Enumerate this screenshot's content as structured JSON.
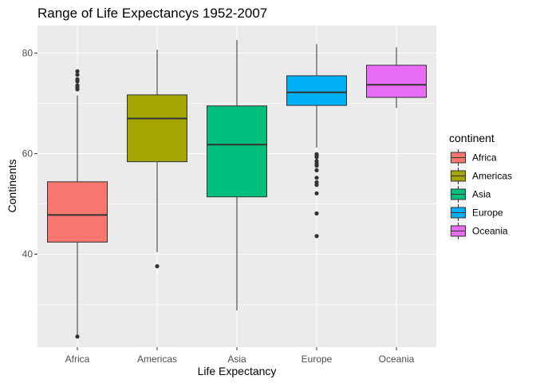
{
  "chart_data": {
    "type": "boxplot",
    "title": "Range of Life Expectancys 1952-2007",
    "xlabel": "Life Expectancy",
    "ylabel": "Continents",
    "ylim": [
      21.5,
      85.5
    ],
    "y_ticks": [
      40,
      60,
      80
    ],
    "grid": true,
    "legend": {
      "title": "continent",
      "placement": "right",
      "entries": [
        "Africa",
        "Americas",
        "Asia",
        "Europe",
        "Oceania"
      ]
    },
    "categories": [
      "Africa",
      "Americas",
      "Asia",
      "Europe",
      "Oceania"
    ],
    "colors": [
      "#F8766D",
      "#A3A500",
      "#00BF7D",
      "#00B0F6",
      "#E76BF3"
    ],
    "series": [
      {
        "category": "Africa",
        "q1": 42.4,
        "median": 47.8,
        "q3": 54.4,
        "whisker_low": 23.6,
        "whisker_high": 71.6,
        "outliers": [
          23.6,
          72.8,
          73.2,
          73.6,
          74.4,
          74.8,
          75.7,
          76.4
        ]
      },
      {
        "category": "Americas",
        "q1": 58.4,
        "median": 67.0,
        "q3": 71.7,
        "whisker_low": 40.4,
        "whisker_high": 80.7,
        "outliers": [
          37.6
        ]
      },
      {
        "category": "Asia",
        "q1": 51.4,
        "median": 61.8,
        "q3": 69.5,
        "whisker_low": 28.8,
        "whisker_high": 82.6,
        "outliers": []
      },
      {
        "category": "Europe",
        "q1": 69.6,
        "median": 72.2,
        "q3": 75.5,
        "whisker_low": 61.2,
        "whisker_high": 81.8,
        "outliers": [
          43.6,
          48.1,
          52.1,
          53.8,
          54.3,
          55.2,
          56.7,
          57.6,
          58.0,
          58.5,
          59.3,
          59.6,
          59.9
        ]
      },
      {
        "category": "Oceania",
        "q1": 71.2,
        "median": 73.7,
        "q3": 77.6,
        "whisker_low": 69.1,
        "whisker_high": 81.2,
        "outliers": []
      }
    ]
  }
}
